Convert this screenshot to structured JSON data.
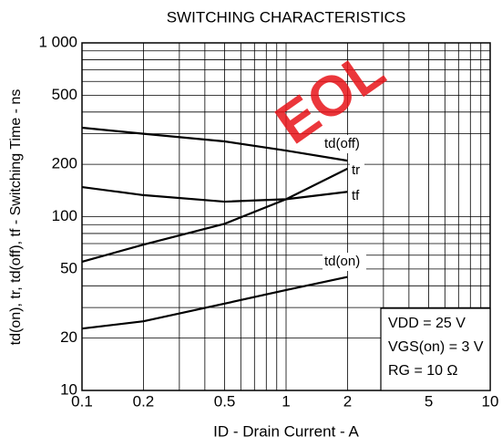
{
  "chart_data": {
    "type": "line",
    "title": "SWITCHING CHARACTERISTICS",
    "x_label": "ID - Drain Current - A",
    "y_label": "td(on), tr, td(off), tf - Switching Time - ns",
    "watermark": "EOL",
    "annotations": [
      "VDD = 25 V",
      "VGS(on) = 3 V",
      "RG = 10 Ω"
    ],
    "x": [
      0.1,
      0.2,
      0.5,
      1,
      2
    ],
    "series": [
      {
        "name": "td(off)",
        "color": "#000000",
        "values": [
          325,
          300,
          271,
          240,
          210
        ]
      },
      {
        "name": "tr",
        "color": "#000000",
        "values": [
          55,
          69,
          91,
          126,
          189
        ]
      },
      {
        "name": "tf",
        "color": "#000000",
        "values": [
          148,
          133,
          122,
          126,
          139
        ]
      },
      {
        "name": "td(on)",
        "color": "#000000",
        "values": [
          22.7,
          25,
          31.6,
          37.8,
          45
        ]
      }
    ],
    "log_x": true,
    "log_y": true,
    "grid": true,
    "xlim": [
      0.1,
      10
    ],
    "ylim": [
      10,
      1000
    ],
    "xticks": [
      0.1,
      0.2,
      0.5,
      1,
      2,
      5,
      10
    ],
    "xminor_ticks": [
      0.3,
      0.4,
      0.6,
      0.7,
      0.8,
      0.9,
      3,
      4,
      6,
      7,
      8,
      9
    ],
    "yticks": [
      10,
      20,
      50,
      100,
      200,
      500,
      {
        "value": 1000,
        "label": "1 000"
      }
    ],
    "yminor_ticks": [
      30,
      40,
      60,
      70,
      80,
      90,
      300,
      400,
      600,
      700,
      800,
      900
    ]
  }
}
